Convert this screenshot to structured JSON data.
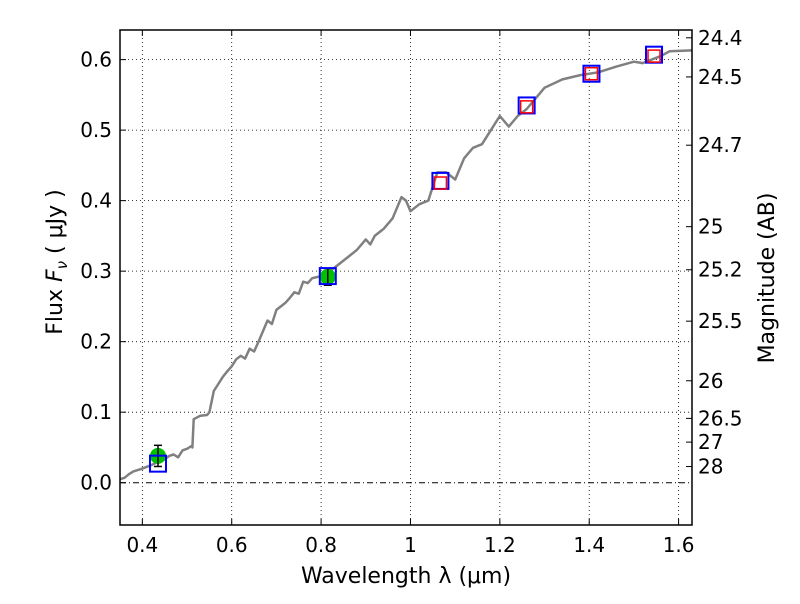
{
  "chart_data": {
    "type": "line",
    "xlabel": "Wavelength  λ (μm)",
    "ylabel": "Flux  F_ν ( μJy )",
    "ylabel_parts": {
      "prefix": "Flux  ",
      "var": "F",
      "sub": "ν",
      "suffix": "  ( μJy )"
    },
    "y2label": "Magnitude (AB)",
    "xlim": [
      0.35,
      1.63
    ],
    "ylim": [
      -0.06,
      0.642
    ],
    "grid": true,
    "xticks": [
      0.4,
      0.6,
      0.8,
      1.0,
      1.2,
      1.4,
      1.6
    ],
    "xtick_labels": [
      "0.4",
      "0.6",
      "0.8",
      "1",
      "1.2",
      "1.4",
      "1.6"
    ],
    "yticks": [
      0.0,
      0.1,
      0.2,
      0.3,
      0.4,
      0.5,
      0.6
    ],
    "ytick_labels": [
      "0.0",
      "0.1",
      "0.2",
      "0.3",
      "0.4",
      "0.5",
      "0.6"
    ],
    "y2ticks": [
      24.4,
      24.5,
      24.7,
      25,
      25.2,
      25.5,
      26,
      26.5,
      27,
      28
    ],
    "y2tick_labels": [
      "24.4",
      "24.5",
      "24.7",
      "25",
      "25.2",
      "25.5",
      "26",
      "26.5",
      "27",
      "28"
    ],
    "mag_zeropoint": 23.9,
    "colors": {
      "spectrum": "#808080",
      "observed": "#00c000",
      "model_box": "#0000ff",
      "synthetic": "#ff0000"
    },
    "series": [
      {
        "name": "spectrum",
        "type": "line",
        "x": [
          0.35,
          0.36,
          0.37,
          0.38,
          0.4,
          0.42,
          0.43,
          0.45,
          0.46,
          0.47,
          0.48,
          0.49,
          0.5,
          0.51,
          0.512,
          0.515,
          0.53,
          0.545,
          0.55,
          0.56,
          0.57,
          0.58,
          0.59,
          0.6,
          0.61,
          0.62,
          0.63,
          0.64,
          0.65,
          0.66,
          0.67,
          0.68,
          0.69,
          0.7,
          0.71,
          0.72,
          0.73,
          0.74,
          0.75,
          0.76,
          0.77,
          0.78,
          0.8,
          0.82,
          0.84,
          0.86,
          0.88,
          0.9,
          0.91,
          0.92,
          0.94,
          0.96,
          0.98,
          0.99,
          1.0,
          1.02,
          1.04,
          1.06,
          1.08,
          1.1,
          1.12,
          1.14,
          1.16,
          1.18,
          1.2,
          1.22,
          1.24,
          1.26,
          1.28,
          1.3,
          1.34,
          1.38,
          1.42,
          1.46,
          1.5,
          1.52,
          1.56,
          1.58,
          1.63
        ],
        "y": [
          0.005,
          0.007,
          0.012,
          0.016,
          0.02,
          0.025,
          0.028,
          0.033,
          0.038,
          0.04,
          0.036,
          0.046,
          0.048,
          0.052,
          0.05,
          0.09,
          0.095,
          0.096,
          0.1,
          0.13,
          0.14,
          0.15,
          0.158,
          0.165,
          0.175,
          0.18,
          0.176,
          0.19,
          0.186,
          0.2,
          0.215,
          0.23,
          0.225,
          0.245,
          0.25,
          0.255,
          0.262,
          0.27,
          0.268,
          0.285,
          0.283,
          0.29,
          0.293,
          0.3,
          0.31,
          0.32,
          0.33,
          0.345,
          0.338,
          0.35,
          0.36,
          0.375,
          0.405,
          0.4,
          0.385,
          0.395,
          0.4,
          0.44,
          0.44,
          0.43,
          0.46,
          0.475,
          0.48,
          0.5,
          0.52,
          0.505,
          0.52,
          0.53,
          0.545,
          0.56,
          0.572,
          0.578,
          0.582,
          0.59,
          0.597,
          0.595,
          0.605,
          0.612,
          0.613
        ]
      },
      {
        "name": "observed",
        "type": "errorbar",
        "x": [
          0.435,
          0.815
        ],
        "y": [
          0.038,
          0.292
        ],
        "yerr": [
          0.015,
          0.012
        ]
      },
      {
        "name": "model_box",
        "type": "scatter",
        "x": [
          0.435,
          0.815,
          1.067,
          1.26,
          1.405,
          1.545
        ],
        "y": [
          0.027,
          0.293,
          0.428,
          0.535,
          0.58,
          0.607
        ]
      },
      {
        "name": "synthetic",
        "type": "scatter",
        "x": [
          1.067,
          1.26,
          1.405,
          1.545
        ],
        "y": [
          0.425,
          0.533,
          0.58,
          0.605
        ]
      }
    ]
  }
}
